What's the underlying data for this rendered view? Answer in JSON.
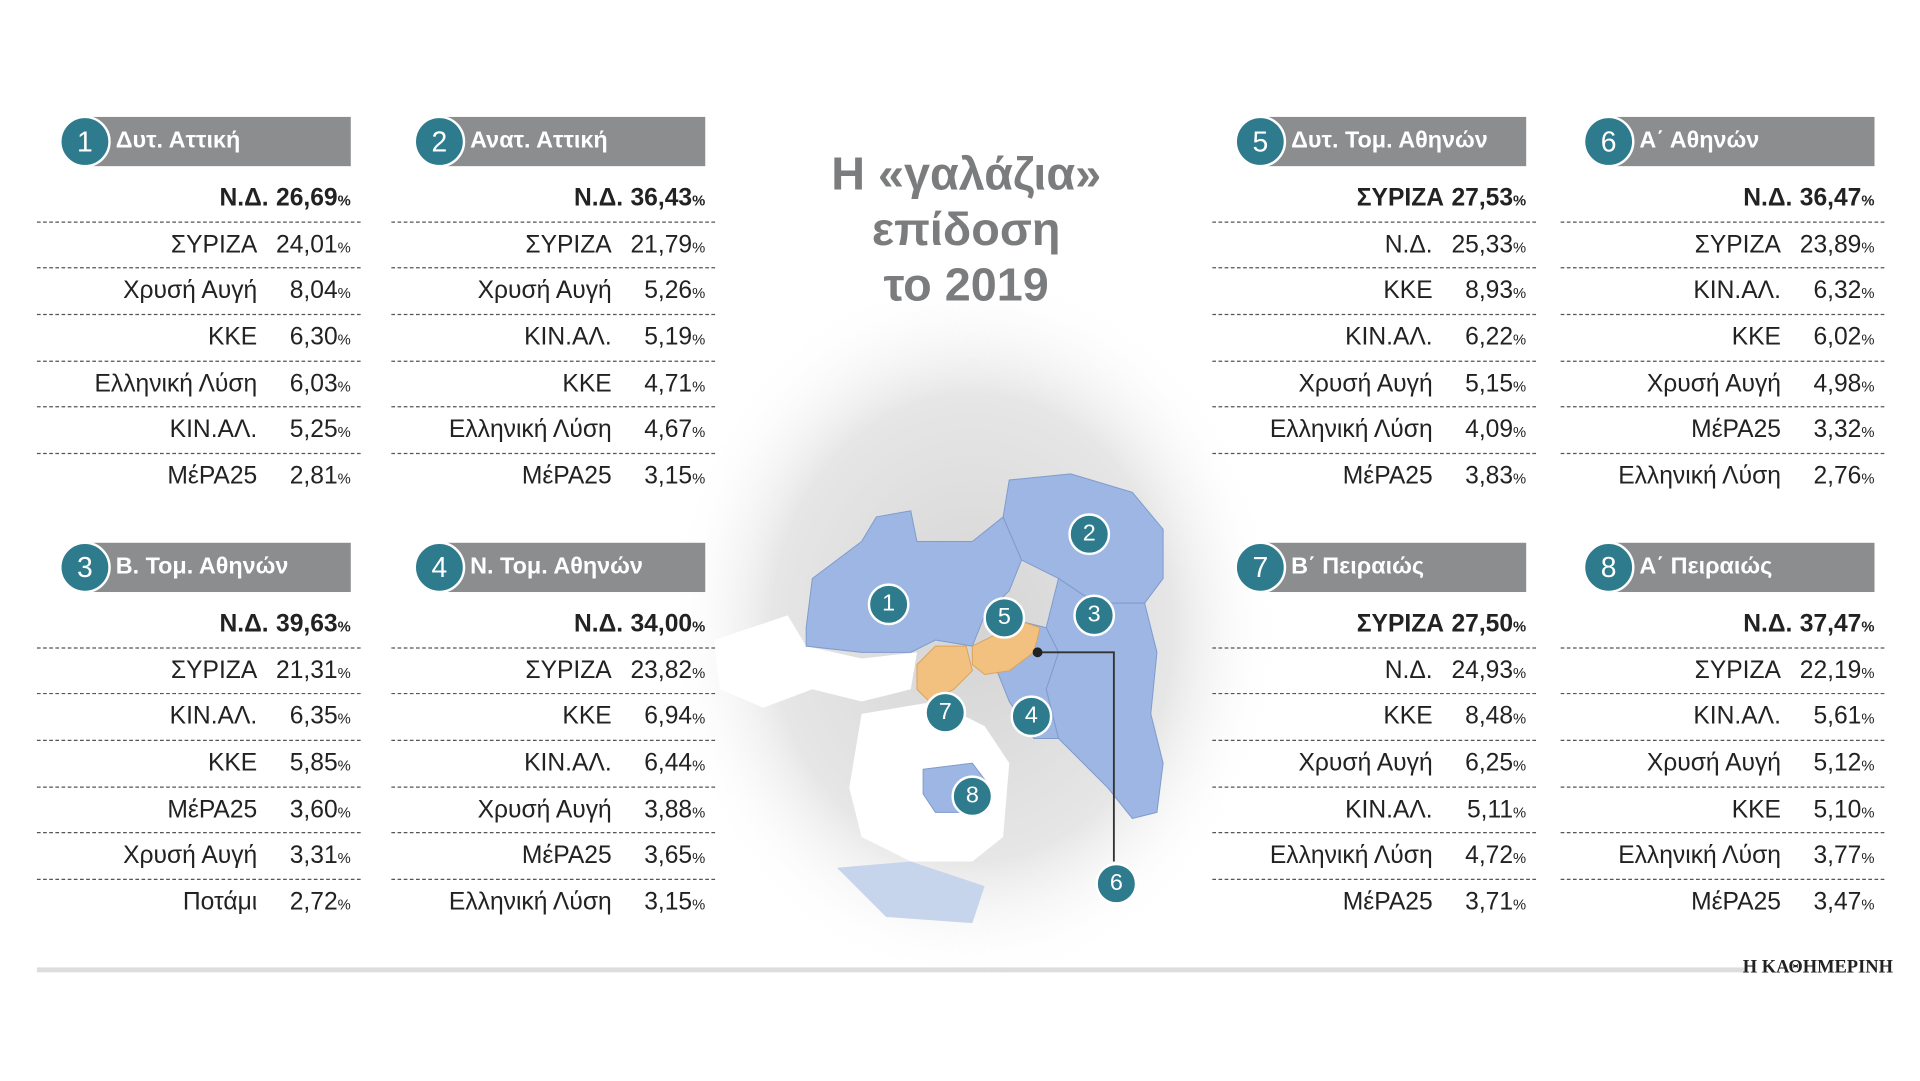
{
  "title_lines": [
    "Η «γαλάζια»",
    "επίδοση",
    "το 2019"
  ],
  "percent_sign": "%",
  "source": "Η ΚΑΘΗΜΕΡΙΝΗ",
  "districts": [
    {
      "number": "1",
      "name": "Δυτ. Αττική",
      "rows": [
        [
          "Ν.Δ.",
          "26,69"
        ],
        [
          "ΣΥΡΙΖΑ",
          "24,01"
        ],
        [
          "Χρυσή Αυγή",
          "8,04"
        ],
        [
          "ΚΚΕ",
          "6,30"
        ],
        [
          "Ελληνική Λύση",
          "6,03"
        ],
        [
          "ΚΙΝ.ΑΛ.",
          "5,25"
        ],
        [
          "ΜέΡΑ25",
          "2,81"
        ]
      ]
    },
    {
      "number": "2",
      "name": "Ανατ. Αττική",
      "rows": [
        [
          "Ν.Δ.",
          "36,43"
        ],
        [
          "ΣΥΡΙΖΑ",
          "21,79"
        ],
        [
          "Χρυσή Αυγή",
          "5,26"
        ],
        [
          "ΚΙΝ.ΑΛ.",
          "5,19"
        ],
        [
          "ΚΚΕ",
          "4,71"
        ],
        [
          "Ελληνική Λύση",
          "4,67"
        ],
        [
          "ΜέΡΑ25",
          "3,15"
        ]
      ]
    },
    {
      "number": "3",
      "name": "Β. Τομ. Αθηνών",
      "rows": [
        [
          "Ν.Δ.",
          "39,63"
        ],
        [
          "ΣΥΡΙΖΑ",
          "21,31"
        ],
        [
          "ΚΙΝ.ΑΛ.",
          "6,35"
        ],
        [
          "ΚΚΕ",
          "5,85"
        ],
        [
          "ΜέΡΑ25",
          "3,60"
        ],
        [
          "Χρυσή Αυγή",
          "3,31"
        ],
        [
          "Ποτάμι",
          "2,72"
        ]
      ]
    },
    {
      "number": "4",
      "name": "Ν. Τομ. Αθηνών",
      "rows": [
        [
          "Ν.Δ.",
          "34,00"
        ],
        [
          "ΣΥΡΙΖΑ",
          "23,82"
        ],
        [
          "ΚΚΕ",
          "6,94"
        ],
        [
          "ΚΙΝ.ΑΛ.",
          "6,44"
        ],
        [
          "Χρυσή Αυγή",
          "3,88"
        ],
        [
          "ΜέΡΑ25",
          "3,65"
        ],
        [
          "Ελληνική Λύση",
          "3,15"
        ]
      ]
    },
    {
      "number": "5",
      "name": "Δυτ. Τομ. Αθηνών",
      "rows": [
        [
          "ΣΥΡΙΖΑ",
          "27,53"
        ],
        [
          "Ν.Δ.",
          "25,33"
        ],
        [
          "ΚΚΕ",
          "8,93"
        ],
        [
          "ΚΙΝ.ΑΛ.",
          "6,22"
        ],
        [
          "Χρυσή Αυγή",
          "5,15"
        ],
        [
          "Ελληνική Λύση",
          "4,09"
        ],
        [
          "ΜέΡΑ25",
          "3,83"
        ]
      ]
    },
    {
      "number": "6",
      "name": "Α΄ Αθηνών",
      "rows": [
        [
          "Ν.Δ.",
          "36,47"
        ],
        [
          "ΣΥΡΙΖΑ",
          "23,89"
        ],
        [
          "ΚΙΝ.ΑΛ.",
          "6,32"
        ],
        [
          "ΚΚΕ",
          "6,02"
        ],
        [
          "Χρυσή Αυγή",
          "4,98"
        ],
        [
          "ΜέΡΑ25",
          "3,32"
        ],
        [
          "Ελληνική Λύση",
          "2,76"
        ]
      ]
    },
    {
      "number": "7",
      "name": "Β΄ Πειραιώς",
      "rows": [
        [
          "ΣΥΡΙΖΑ",
          "27,50"
        ],
        [
          "Ν.Δ.",
          "24,93"
        ],
        [
          "ΚΚΕ",
          "8,48"
        ],
        [
          "Χρυσή Αυγή",
          "6,25"
        ],
        [
          "ΚΙΝ.ΑΛ.",
          "5,11"
        ],
        [
          "Ελληνική Λύση",
          "4,72"
        ],
        [
          "ΜέΡΑ25",
          "3,71"
        ]
      ]
    },
    {
      "number": "8",
      "name": "Α΄ Πειραιώς",
      "rows": [
        [
          "Ν.Δ.",
          "37,47"
        ],
        [
          "ΣΥΡΙΖΑ",
          "22,19"
        ],
        [
          "ΚΙΝ.ΑΛ.",
          "5,61"
        ],
        [
          "Χρυσή Αυγή",
          "5,12"
        ],
        [
          "ΚΚΕ",
          "5,10"
        ],
        [
          "Ελληνική Λύση",
          "3,77"
        ],
        [
          "ΜέΡΑ25",
          "3,47"
        ]
      ]
    }
  ]
}
